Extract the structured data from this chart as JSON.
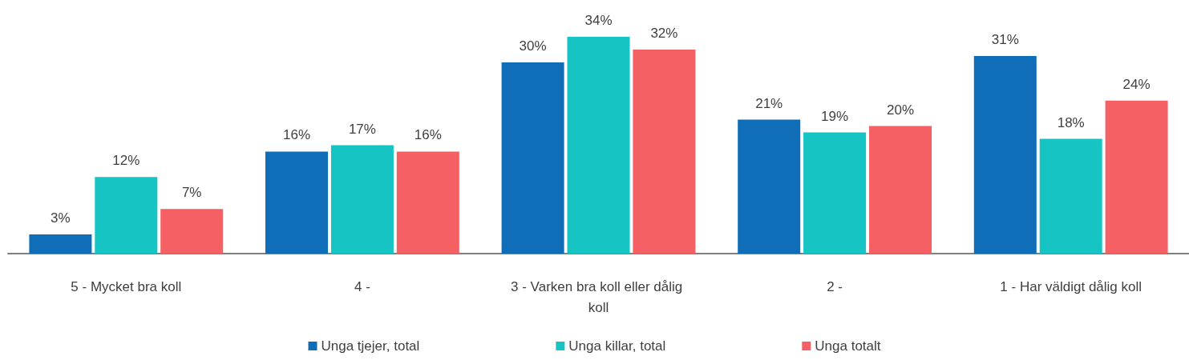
{
  "chart_data": {
    "type": "bar",
    "categories": [
      "5 - Mycket bra koll",
      "4 -",
      "3 - Varken bra koll eller dålig koll",
      "2 -",
      "1 - Har väldigt dålig koll"
    ],
    "series": [
      {
        "name": "Unga tjejer, total",
        "color": "#106eb8",
        "values": [
          3,
          16,
          30,
          21,
          31
        ],
        "value_labels": [
          "3%",
          "16%",
          "30%",
          "21%",
          "31%"
        ]
      },
      {
        "name": "Unga killar, total",
        "color": "#17c4c4",
        "values": [
          12,
          17,
          34,
          19,
          18
        ],
        "value_labels": [
          "12%",
          "17%",
          "34%",
          "19%",
          "18%"
        ]
      },
      {
        "name": "Unga totalt",
        "color": "#f46064",
        "values": [
          7,
          16,
          32,
          20,
          24
        ],
        "value_labels": [
          "7%",
          "16%",
          "32%",
          "20%",
          "24%"
        ]
      }
    ],
    "legend": "bottom"
  }
}
